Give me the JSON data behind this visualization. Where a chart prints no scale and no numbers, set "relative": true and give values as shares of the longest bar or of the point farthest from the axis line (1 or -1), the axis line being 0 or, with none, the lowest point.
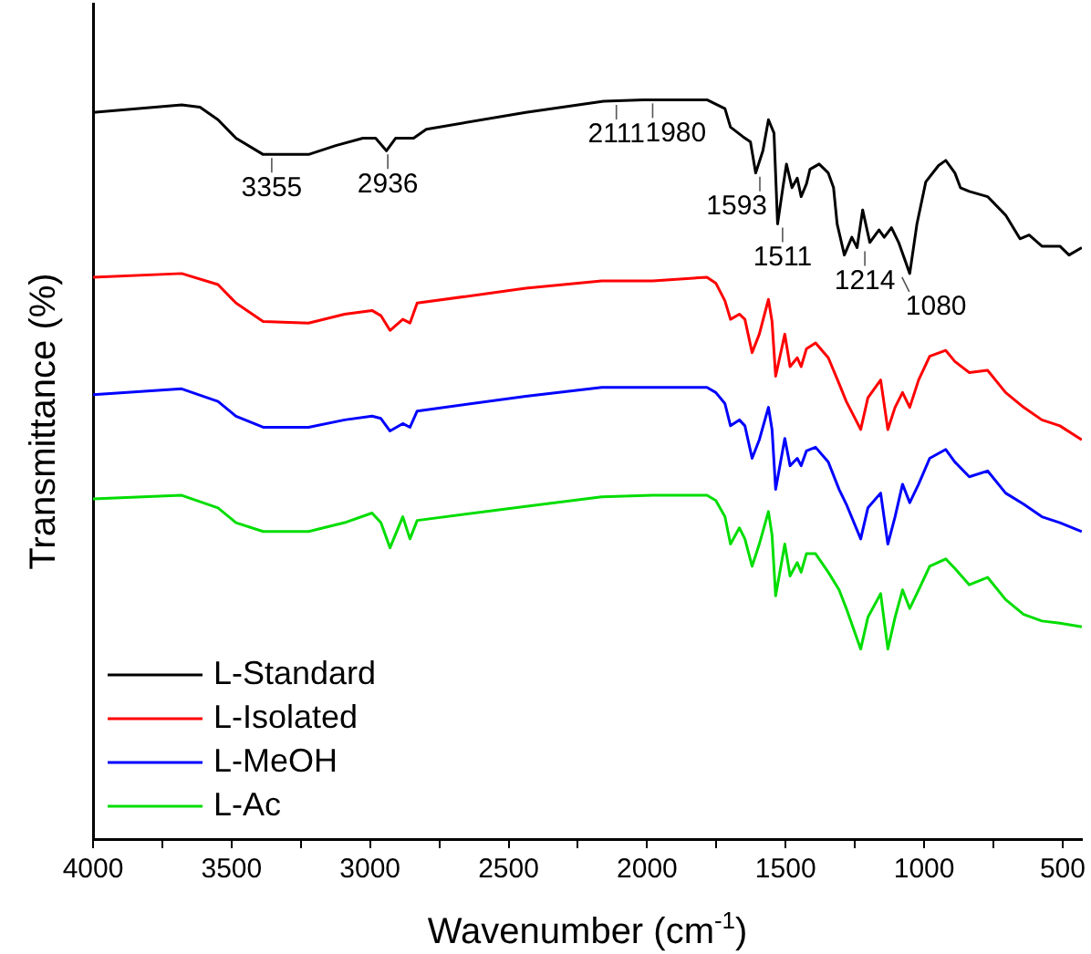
{
  "chart_data": {
    "type": "line",
    "xlabel": "Wavenumber (cm$^{-1}$)",
    "ylabel": "Transmittance (%)",
    "relative": true,
    "xlim": [
      4000,
      430
    ],
    "xticks": [
      4000,
      {
        "value": 3750,
        "label": null
      },
      3500,
      {
        "value": 3250,
        "label": null
      },
      3000,
      {
        "value": 2750,
        "label": null
      },
      2500,
      {
        "value": 2250,
        "label": null
      },
      2000,
      {
        "value": 1750,
        "label": null
      },
      1500,
      {
        "value": 1250,
        "label": null
      },
      1000,
      {
        "value": 750,
        "label": null
      },
      500
    ],
    "x": [
      4000,
      3680,
      3549,
      3484,
      3386,
      3222,
      3092,
      2993,
      2961,
      2928,
      2882,
      2856,
      2830,
      2438,
      2164,
      1980,
      1784,
      1752,
      1719,
      1699,
      1667,
      1647,
      1621,
      1595,
      1562,
      1549,
      1536,
      1503,
      1484,
      1458,
      1444,
      1425,
      1392,
      1346,
      1307,
      1281,
      1229,
      1203,
      1157,
      1131,
      1105,
      1078,
      1052,
      1020,
      980,
      922,
      889,
      837,
      771,
      706,
      641,
      575,
      510,
      431
    ],
    "series": [
      {
        "name": "L-Standard",
        "color": "#000000",
        "x": [
          4000,
          3680,
          3614,
          3549,
          3484,
          3386,
          3222,
          3124,
          3026,
          2980,
          2941,
          2908,
          2843,
          2797,
          2438,
          2157,
          2013,
          1784,
          1719,
          1699,
          1654,
          1627,
          1608,
          1582,
          1562,
          1542,
          1529,
          1510,
          1497,
          1477,
          1458,
          1444,
          1425,
          1412,
          1379,
          1346,
          1327,
          1314,
          1288,
          1261,
          1242,
          1222,
          1196,
          1163,
          1144,
          1118,
          1092,
          1052,
          1026,
          994,
          948,
          922,
          889,
          869,
          837,
          771,
          706,
          654,
          621,
          575,
          510,
          477,
          431
        ],
        "values": [
          0.983,
          0.993,
          0.99,
          0.973,
          0.948,
          0.926,
          0.926,
          0.938,
          0.948,
          0.948,
          0.931,
          0.948,
          0.948,
          0.96,
          0.983,
          0.998,
          1,
          1,
          0.988,
          0.963,
          0.95,
          0.943,
          0.901,
          0.931,
          0.973,
          0.955,
          0.832,
          0.881,
          0.913,
          0.881,
          0.894,
          0.869,
          0.886,
          0.906,
          0.913,
          0.901,
          0.881,
          0.832,
          0.79,
          0.814,
          0.8,
          0.851,
          0.807,
          0.824,
          0.814,
          0.827,
          0.807,
          0.765,
          0.832,
          0.889,
          0.911,
          0.918,
          0.901,
          0.881,
          0.876,
          0.869,
          0.844,
          0.812,
          0.817,
          0.802,
          0.802,
          0.79,
          0.8
        ]
      },
      {
        "name": "L-Isolated",
        "color": "#ff0000",
        "values": [
          0.76,
          0.765,
          0.75,
          0.725,
          0.7,
          0.698,
          0.71,
          0.715,
          0.708,
          0.688,
          0.703,
          0.698,
          0.725,
          0.745,
          0.755,
          0.755,
          0.76,
          0.752,
          0.728,
          0.703,
          0.71,
          0.703,
          0.658,
          0.683,
          0.73,
          0.7,
          0.626,
          0.683,
          0.639,
          0.651,
          0.639,
          0.663,
          0.671,
          0.651,
          0.616,
          0.592,
          0.554,
          0.597,
          0.621,
          0.554,
          0.584,
          0.604,
          0.584,
          0.621,
          0.653,
          0.661,
          0.646,
          0.631,
          0.634,
          0.604,
          0.584,
          0.567,
          0.559,
          0.54
        ]
      },
      {
        "name": "L-MeOH",
        "color": "#0000ff",
        "values": [
          0.601,
          0.609,
          0.592,
          0.572,
          0.557,
          0.557,
          0.567,
          0.572,
          0.569,
          0.552,
          0.562,
          0.557,
          0.579,
          0.599,
          0.611,
          0.611,
          0.611,
          0.604,
          0.589,
          0.559,
          0.567,
          0.559,
          0.515,
          0.54,
          0.584,
          0.554,
          0.473,
          0.542,
          0.505,
          0.515,
          0.505,
          0.525,
          0.53,
          0.51,
          0.473,
          0.453,
          0.406,
          0.448,
          0.468,
          0.399,
          0.436,
          0.48,
          0.455,
          0.48,
          0.515,
          0.527,
          0.51,
          0.49,
          0.498,
          0.468,
          0.453,
          0.436,
          0.428,
          0.416
        ]
      },
      {
        "name": "L-Ac",
        "color": "#00dd00",
        "values": [
          0.46,
          0.465,
          0.448,
          0.428,
          0.416,
          0.416,
          0.428,
          0.441,
          0.428,
          0.394,
          0.436,
          0.406,
          0.431,
          0.45,
          0.463,
          0.465,
          0.465,
          0.458,
          0.436,
          0.399,
          0.421,
          0.406,
          0.369,
          0.399,
          0.443,
          0.411,
          0.329,
          0.399,
          0.356,
          0.374,
          0.361,
          0.386,
          0.386,
          0.361,
          0.337,
          0.312,
          0.257,
          0.3,
          0.332,
          0.257,
          0.3,
          0.337,
          0.312,
          0.337,
          0.369,
          0.379,
          0.366,
          0.344,
          0.354,
          0.324,
          0.304,
          0.295,
          0.292,
          0.287
        ]
      }
    ],
    "annotations": [
      {
        "text": "3355",
        "x": 3355,
        "y": 0.926
      },
      {
        "text": "2936",
        "x": 2936,
        "y": 0.931
      },
      {
        "text": "2111",
        "x": 2111,
        "y": 0.998
      },
      {
        "text": "1980",
        "x": 1980,
        "y": 1
      },
      {
        "text": "1593",
        "x": 1593,
        "y": 0.901
      },
      {
        "text": "1511",
        "x": 1511,
        "y": 0.832
      },
      {
        "text": "1214",
        "x": 1214,
        "y": 0.8
      },
      {
        "text": "1080",
        "x": 1080,
        "y": 0.765
      }
    ],
    "legend": "bottom left",
    "grid": false,
    "marker": "none",
    "line_style": "solid"
  }
}
